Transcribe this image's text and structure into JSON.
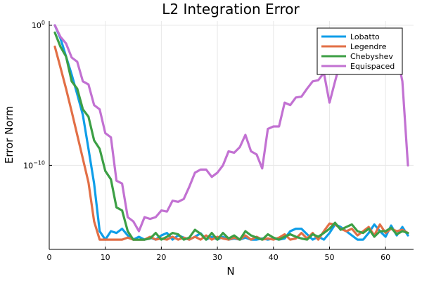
{
  "chart_data": {
    "type": "line",
    "title": "L2 Integration Error",
    "xlabel": "N",
    "ylabel": "Error Norm",
    "xlim": [
      0,
      65
    ],
    "ylim": [
      1e-16,
      2
    ],
    "yscale": "log",
    "x_ticks": [
      0,
      10,
      20,
      30,
      40,
      50,
      60
    ],
    "y_ticks": [
      {
        "value": 1,
        "label": "10",
        "exp": "0"
      },
      {
        "value": 1e-10,
        "label": "10",
        "exp": "−10"
      }
    ],
    "grid": true,
    "legend_position": "top-right",
    "series": [
      {
        "name": "Lobatto",
        "color": "#0f9ee8",
        "x": [
          1,
          2,
          3,
          4,
          5,
          6,
          7,
          8,
          9,
          10,
          11,
          12,
          13,
          14,
          15,
          16,
          17,
          18,
          19,
          20,
          21,
          22,
          23,
          24,
          25,
          26,
          27,
          28,
          29,
          30,
          31,
          32,
          33,
          34,
          35,
          36,
          37,
          38,
          39,
          40,
          41,
          42,
          43,
          44,
          45,
          46,
          47,
          48,
          49,
          50,
          51,
          52,
          53,
          54,
          55,
          56,
          57,
          58,
          59,
          60,
          61,
          62,
          63,
          64
        ],
        "values": [
          1.0,
          0.12,
          0.006,
          0.0003,
          1.2e-05,
          4e-07,
          1.5e-09,
          5e-12,
          2e-15,
          5e-16,
          2e-15,
          1.5e-15,
          3e-15,
          1e-15,
          5e-16,
          8e-16,
          5e-16,
          7e-16,
          5e-16,
          1e-15,
          1.5e-15,
          5e-16,
          1e-15,
          7e-16,
          5e-16,
          8e-16,
          1.4e-15,
          5e-16,
          8e-16,
          5e-16,
          8e-16,
          5e-16,
          6e-16,
          5e-16,
          7e-16,
          5e-16,
          5e-16,
          6e-16,
          5e-16,
          6e-16,
          5e-16,
          6e-16,
          2e-15,
          3e-15,
          3e-15,
          1.2e-15,
          5e-16,
          8e-16,
          5e-16,
          1.5e-15,
          6e-15,
          4e-15,
          2e-15,
          1e-15,
          5e-16,
          5e-16,
          1.5e-15,
          6e-15,
          2e-15,
          8e-16,
          5e-15,
          1e-15,
          4e-15,
          1e-15
        ]
      },
      {
        "name": "Legendre",
        "color": "#e26f46",
        "x": [
          1,
          2,
          3,
          4,
          5,
          6,
          7,
          8,
          9,
          10,
          11,
          12,
          13,
          14,
          15,
          16,
          17,
          18,
          19,
          20,
          21,
          22,
          23,
          24,
          25,
          26,
          27,
          28,
          29,
          30,
          31,
          32,
          33,
          34,
          35,
          36,
          37,
          38,
          39,
          40,
          41,
          42,
          43,
          44,
          45,
          46,
          47,
          48,
          49,
          50,
          51,
          52,
          53,
          54,
          55,
          56,
          57,
          58,
          59,
          60,
          61,
          62,
          63,
          64
        ],
        "values": [
          0.03,
          0.001,
          3e-05,
          7e-07,
          1.5e-08,
          3e-10,
          6e-12,
          1e-14,
          5e-16,
          5e-16,
          5e-16,
          5e-16,
          5e-16,
          7e-16,
          5e-16,
          5e-16,
          5e-16,
          8e-16,
          5e-16,
          6e-16,
          5e-16,
          8e-16,
          5e-16,
          7e-16,
          5e-16,
          8e-16,
          5e-16,
          1e-15,
          5e-16,
          8e-16,
          6e-16,
          5e-16,
          7e-16,
          5e-16,
          1e-15,
          5e-16,
          8e-16,
          5e-16,
          6e-16,
          5e-16,
          7e-16,
          1.2e-15,
          5e-16,
          6e-16,
          1.5e-15,
          6e-16,
          1.5e-15,
          5e-16,
          2e-15,
          7e-15,
          6e-15,
          3e-15,
          2e-15,
          3e-15,
          1e-15,
          2e-15,
          4e-15,
          1e-15,
          6e-15,
          1.5e-15,
          3e-15,
          2e-15,
          2.5e-15,
          1.5e-15
        ]
      },
      {
        "name": "Chebyshev",
        "color": "#3c9f45",
        "x": [
          1,
          2,
          3,
          4,
          5,
          6,
          7,
          8,
          9,
          10,
          11,
          12,
          13,
          14,
          15,
          16,
          17,
          18,
          19,
          20,
          21,
          22,
          23,
          24,
          25,
          26,
          27,
          28,
          29,
          30,
          31,
          32,
          33,
          34,
          35,
          36,
          37,
          38,
          39,
          40,
          41,
          42,
          43,
          44,
          45,
          46,
          47,
          48,
          49,
          50,
          51,
          52,
          53,
          54,
          55,
          56,
          57,
          58,
          59,
          60,
          61,
          62,
          63,
          64
        ],
        "values": [
          0.3,
          0.03,
          0.006,
          0.0001,
          3e-05,
          1e-06,
          3e-07,
          6e-09,
          1.5e-09,
          4e-11,
          1e-11,
          1e-13,
          6e-14,
          2e-15,
          5e-16,
          5e-16,
          5e-16,
          6e-16,
          1.5e-15,
          5e-16,
          8e-16,
          1.5e-15,
          1.2e-15,
          5e-16,
          7e-16,
          2.5e-15,
          1.3e-15,
          5e-16,
          1.5e-15,
          5e-16,
          1.5e-15,
          6e-16,
          1e-15,
          5e-16,
          2e-15,
          1e-15,
          7e-16,
          5e-16,
          1.2e-15,
          7e-16,
          5e-16,
          8e-16,
          1.2e-15,
          8e-16,
          6e-16,
          5e-16,
          1.2e-15,
          8e-16,
          1.5e-15,
          3e-15,
          8e-15,
          2.5e-15,
          4e-15,
          6e-15,
          2e-15,
          1.5e-15,
          3e-15,
          8e-16,
          2e-15,
          2e-15,
          3.5e-15,
          1.2e-15,
          2e-15,
          1.5e-15
        ]
      },
      {
        "name": "Equispaced",
        "color": "#c271d2",
        "x": [
          1,
          2,
          3,
          4,
          5,
          6,
          7,
          8,
          9,
          10,
          11,
          12,
          13,
          14,
          15,
          16,
          17,
          18,
          19,
          20,
          21,
          22,
          23,
          24,
          25,
          26,
          27,
          28,
          29,
          30,
          31,
          32,
          33,
          34,
          35,
          36,
          37,
          38,
          39,
          40,
          41,
          42,
          43,
          44,
          45,
          46,
          47,
          48,
          49,
          50,
          51,
          52,
          53,
          54,
          55,
          56,
          57,
          58,
          59,
          60,
          61,
          62,
          63,
          64
        ],
        "values": [
          1.0,
          0.15,
          0.05,
          0.005,
          0.0025,
          0.0001,
          6e-05,
          2e-06,
          1e-06,
          2e-08,
          1e-08,
          8e-12,
          5e-12,
          2e-14,
          1e-14,
          2e-15,
          2e-14,
          1.5e-14,
          2e-14,
          6e-14,
          5e-14,
          3e-13,
          2.5e-13,
          4e-13,
          3e-12,
          3e-11,
          5e-11,
          5e-11,
          1.5e-11,
          3e-11,
          1e-10,
          1e-09,
          8e-10,
          2e-09,
          1.5e-08,
          1e-09,
          6e-10,
          6e-11,
          4e-08,
          6e-08,
          6e-08,
          3e-06,
          2e-06,
          7e-06,
          8e-06,
          3e-05,
          0.0001,
          0.00012,
          0.0004,
          3e-06,
          0.0001,
          0.003,
          0.008,
          0.02,
          0.018,
          0.0012,
          0.15,
          0.15,
          0.04,
          0.5,
          0.03,
          0.01,
          0.0001,
          1e-10
        ]
      }
    ]
  }
}
